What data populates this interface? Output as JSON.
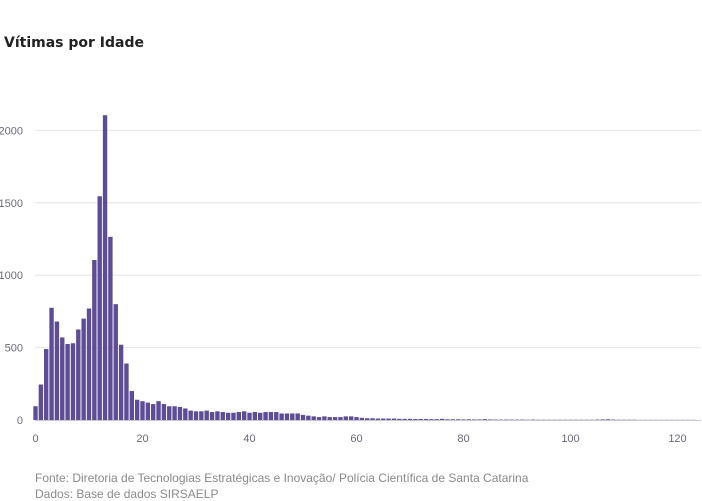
{
  "title": "Vítimas por Idade",
  "footer": {
    "source": "Fonte: Diretoria de Tecnologias Estratégicas e Inovação/ Polícia Científica de Santa Catarina",
    "data": "Dados: Base de dados SIRSAELP"
  },
  "chart_data": {
    "type": "bar",
    "title": "Vítimas por Idade",
    "xlabel": "",
    "ylabel": "",
    "xlim": [
      0,
      124
    ],
    "ylim": [
      0,
      2200
    ],
    "xticks": [
      0,
      20,
      40,
      60,
      80,
      100,
      120
    ],
    "yticks": [
      0,
      500,
      1000,
      1500,
      2000
    ],
    "grid": true,
    "bar_color": "#5e4d96",
    "series": [
      {
        "x": [
          0,
          1,
          2,
          3,
          4,
          5,
          6,
          7,
          8,
          9,
          10,
          11,
          12,
          13,
          14,
          15,
          16,
          17,
          18,
          19,
          20,
          21,
          22,
          23,
          24,
          25,
          26,
          27,
          28,
          29,
          30,
          31,
          32,
          33,
          34,
          35,
          36,
          37,
          38,
          39,
          40,
          41,
          42,
          43,
          44,
          45,
          46,
          47,
          48,
          49,
          50,
          51,
          52,
          53,
          54,
          55,
          56,
          57,
          58,
          59,
          60,
          61,
          62,
          63,
          64,
          65,
          66,
          67,
          68,
          69,
          70,
          71,
          72,
          73,
          74,
          75,
          76,
          77,
          78,
          79,
          80,
          81,
          82,
          83,
          84,
          85,
          86,
          87,
          88,
          89,
          90,
          91,
          92,
          93,
          94,
          95,
          96,
          97,
          98,
          99,
          100,
          101,
          102,
          103,
          104,
          105,
          106,
          107,
          108,
          109,
          110,
          111,
          112,
          113,
          114,
          115,
          116,
          117,
          118,
          119,
          120,
          121,
          122,
          123
        ],
        "values": [
          95,
          245,
          490,
          775,
          680,
          570,
          525,
          530,
          625,
          700,
          770,
          1105,
          1545,
          2105,
          1265,
          800,
          520,
          390,
          200,
          140,
          130,
          120,
          110,
          130,
          110,
          95,
          95,
          90,
          80,
          65,
          60,
          60,
          65,
          55,
          60,
          55,
          50,
          50,
          55,
          60,
          50,
          55,
          50,
          55,
          55,
          55,
          45,
          45,
          45,
          45,
          35,
          30,
          25,
          20,
          25,
          20,
          20,
          20,
          25,
          25,
          20,
          15,
          12,
          12,
          10,
          10,
          10,
          10,
          8,
          8,
          8,
          7,
          7,
          7,
          6,
          6,
          8,
          5,
          5,
          5,
          4,
          5,
          4,
          4,
          6,
          4,
          3,
          3,
          3,
          3,
          3,
          3,
          2,
          3,
          2,
          2,
          2,
          2,
          2,
          2,
          2,
          2,
          2,
          2,
          2,
          3,
          4,
          5,
          3,
          2,
          2,
          2,
          2,
          1,
          1,
          1,
          1,
          1,
          1,
          1,
          1,
          1,
          1,
          1
        ]
      }
    ]
  }
}
